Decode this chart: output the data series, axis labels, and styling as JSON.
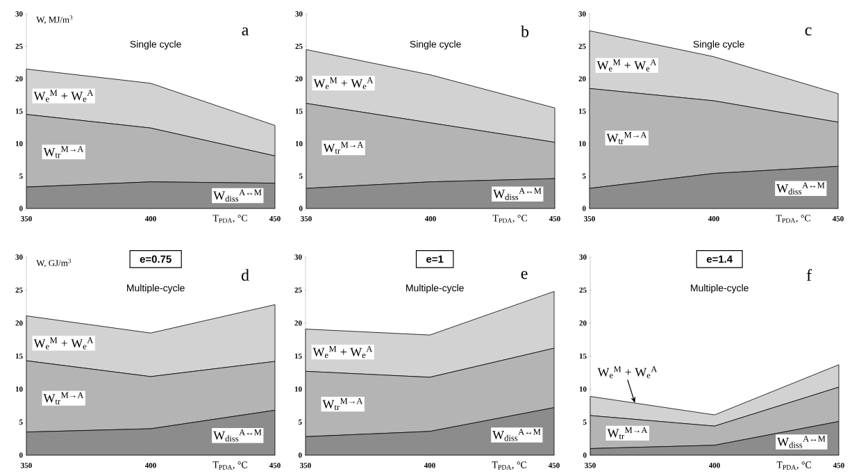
{
  "chart_data": [
    {
      "type": "area",
      "stacked": true,
      "title": "Single cycle",
      "ylabel": "W, MJ/m$^{3}$",
      "xlabel": "T$_{PDA}$, °C",
      "annotations": [
        "a"
      ],
      "x": [
        350,
        400,
        450
      ],
      "xlim": [
        350,
        450
      ],
      "xticks": [
        350,
        400,
        450
      ],
      "ylim": [
        0,
        30
      ],
      "yticks": [
        0,
        5,
        10,
        15,
        20,
        25,
        30
      ],
      "series": [
        {
          "name": "W$_{diss}$$^{A↔M}$",
          "color": "#8c8c8c",
          "values": [
            3.3,
            4.1,
            3.9
          ]
        },
        {
          "name": "W$_{tr}$$^{M→A}$",
          "color": "#b4b4b4",
          "values": [
            11.2,
            8.3,
            4.2
          ]
        },
        {
          "name": "W$_{e}$$^{M}$ + W$_{e}$$^{A}$",
          "color": "#d2d2d2",
          "values": [
            7.0,
            6.9,
            4.7
          ]
        }
      ]
    },
    {
      "type": "area",
      "stacked": true,
      "title": "Single cycle",
      "xlabel": "T$_{PDA}$, °C",
      "annotations": [
        "b"
      ],
      "x": [
        350,
        400,
        450
      ],
      "xlim": [
        350,
        450
      ],
      "xticks": [
        350,
        400,
        450
      ],
      "ylim": [
        0,
        30
      ],
      "yticks": [
        0,
        5,
        10,
        15,
        20,
        25,
        30
      ],
      "series": [
        {
          "name": "W$_{diss}$$^{A↔M}$",
          "color": "#8c8c8c",
          "values": [
            3.1,
            4.1,
            4.6
          ]
        },
        {
          "name": "W$_{tr}$$^{M→A}$",
          "color": "#b4b4b4",
          "values": [
            13.1,
            9.1,
            5.6
          ]
        },
        {
          "name": "W$_{e}$$^{M}$ + W$_{e}$$^{A}$",
          "color": "#d2d2d2",
          "values": [
            8.3,
            7.4,
            5.3
          ]
        }
      ]
    },
    {
      "type": "area",
      "stacked": true,
      "title": "Single cycle",
      "xlabel": "T$_{PDA}$, °C",
      "annotations": [
        "c"
      ],
      "x": [
        350,
        400,
        450
      ],
      "xlim": [
        350,
        450
      ],
      "xticks": [
        350,
        400,
        450
      ],
      "ylim": [
        0,
        30
      ],
      "yticks": [
        0,
        5,
        10,
        15,
        20,
        25,
        30
      ],
      "series": [
        {
          "name": "W$_{diss}$$^{A↔M}$",
          "color": "#8c8c8c",
          "values": [
            3.1,
            5.4,
            6.5
          ]
        },
        {
          "name": "W$_{tr}$$^{M→A}$",
          "color": "#b4b4b4",
          "values": [
            15.4,
            11.2,
            6.8
          ]
        },
        {
          "name": "W$_{e}$$^{M}$ + W$_{e}$$^{A}$",
          "color": "#d2d2d2",
          "values": [
            8.9,
            6.8,
            4.4
          ]
        }
      ]
    },
    {
      "type": "area",
      "stacked": true,
      "title": "Multiple-cycle",
      "subtitle": "e=0.75",
      "ylabel": "W, GJ/m$^{3}$",
      "xlabel": "T$_{PDA}$, °C",
      "annotations": [
        "d"
      ],
      "x": [
        350,
        400,
        450
      ],
      "xlim": [
        350,
        450
      ],
      "xticks": [
        350,
        400,
        450
      ],
      "ylim": [
        0,
        30
      ],
      "yticks": [
        0,
        5,
        10,
        15,
        20,
        25,
        30
      ],
      "series": [
        {
          "name": "W$_{diss}$$^{A↔M}$",
          "color": "#8c8c8c",
          "values": [
            3.5,
            4.0,
            6.8
          ]
        },
        {
          "name": "W$_{tr}$$^{M→A}$",
          "color": "#b4b4b4",
          "values": [
            10.8,
            7.9,
            7.4
          ]
        },
        {
          "name": "W$_{e}$$^{M}$ + W$_{e}$$^{A}$",
          "color": "#d2d2d2",
          "values": [
            6.8,
            6.6,
            8.6
          ]
        }
      ]
    },
    {
      "type": "area",
      "stacked": true,
      "title": "Multiple-cycle",
      "subtitle": "e=1",
      "xlabel": "T$_{PDA}$, °C",
      "annotations": [
        "e"
      ],
      "x": [
        350,
        400,
        450
      ],
      "xlim": [
        350,
        450
      ],
      "xticks": [
        350,
        400,
        450
      ],
      "ylim": [
        0,
        30
      ],
      "yticks": [
        0,
        5,
        10,
        15,
        20,
        25,
        30
      ],
      "series": [
        {
          "name": "W$_{diss}$$^{A↔M}$",
          "color": "#8c8c8c",
          "values": [
            2.8,
            3.6,
            7.2
          ]
        },
        {
          "name": "W$_{tr}$$^{M→A}$",
          "color": "#b4b4b4",
          "values": [
            9.9,
            8.2,
            9.0
          ]
        },
        {
          "name": "W$_{e}$$^{M}$ + W$_{e}$$^{A}$",
          "color": "#d2d2d2",
          "values": [
            6.4,
            6.4,
            8.6
          ]
        }
      ]
    },
    {
      "type": "area",
      "stacked": true,
      "title": "Multiple-cycle",
      "subtitle": "e=1.4",
      "xlabel": "T$_{PDA}$, °C",
      "annotations": [
        "f"
      ],
      "x": [
        350,
        400,
        450
      ],
      "xlim": [
        350,
        450
      ],
      "xticks": [
        350,
        400,
        450
      ],
      "ylim": [
        0,
        30
      ],
      "yticks": [
        0,
        5,
        10,
        15,
        20,
        25,
        30
      ],
      "series": [
        {
          "name": "W$_{diss}$$^{A↔M}$",
          "color": "#8c8c8c",
          "values": [
            1.0,
            1.5,
            5.1
          ]
        },
        {
          "name": "W$_{tr}$$^{M→A}$",
          "color": "#b4b4b4",
          "values": [
            5.0,
            2.9,
            5.2
          ]
        },
        {
          "name": "W$_{e}$$^{M}$ + W$_{e}$$^{A}$",
          "color": "#d2d2d2",
          "values": [
            2.9,
            1.7,
            3.4
          ]
        }
      ]
    }
  ]
}
